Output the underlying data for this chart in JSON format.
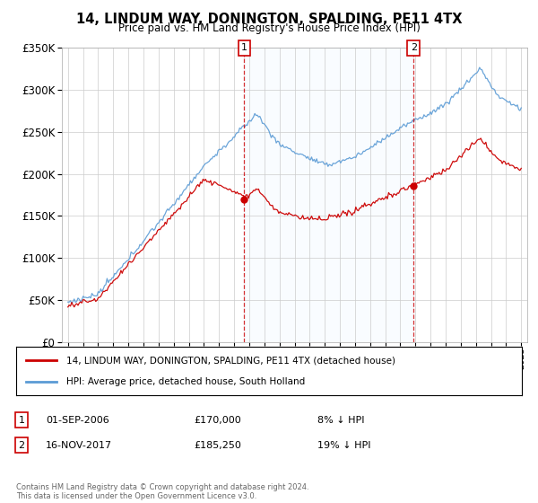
{
  "title": "14, LINDUM WAY, DONINGTON, SPALDING, PE11 4TX",
  "subtitle": "Price paid vs. HM Land Registry's House Price Index (HPI)",
  "legend_line1": "14, LINDUM WAY, DONINGTON, SPALDING, PE11 4TX (detached house)",
  "legend_line2": "HPI: Average price, detached house, South Holland",
  "annotation1_date": "01-SEP-2006",
  "annotation1_price": "£170,000",
  "annotation1_hpi": "8% ↓ HPI",
  "annotation2_date": "16-NOV-2017",
  "annotation2_price": "£185,250",
  "annotation2_hpi": "19% ↓ HPI",
  "footnote": "Contains HM Land Registry data © Crown copyright and database right 2024.\nThis data is licensed under the Open Government Licence v3.0.",
  "red_color": "#cc0000",
  "blue_color": "#5b9bd5",
  "shade_color": "#ddeeff",
  "background_color": "#ffffff",
  "grid_color": "#cccccc",
  "ylim": [
    0,
    350000
  ],
  "yticks": [
    0,
    50000,
    100000,
    150000,
    200000,
    250000,
    300000,
    350000
  ],
  "purchase1_year": 2006.67,
  "purchase1_price": 170000,
  "purchase2_year": 2017.88,
  "purchase2_price": 185250
}
